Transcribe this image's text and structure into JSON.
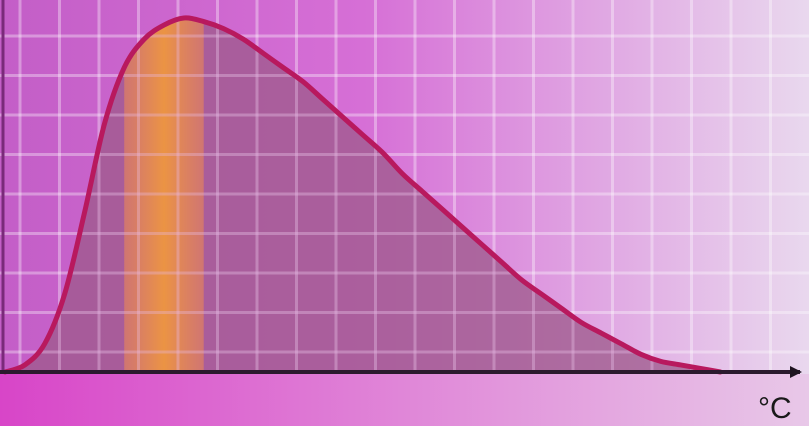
{
  "chart_data": {
    "type": "area",
    "title": "",
    "xlabel": "°C",
    "ylabel": "",
    "x": [
      0,
      10,
      20,
      30,
      40,
      50,
      60,
      70,
      80,
      90,
      100,
      110,
      120,
      130,
      140,
      150,
      160,
      170,
      180,
      190,
      200,
      210,
      220,
      230,
      240,
      250,
      260,
      270,
      280,
      290,
      300,
      310,
      320,
      330,
      340,
      350,
      360
    ],
    "values": [
      0,
      2,
      8,
      22,
      45,
      70,
      86,
      94,
      98,
      100,
      99,
      97,
      94,
      90,
      86,
      82,
      77,
      72,
      67,
      62,
      56,
      51,
      46,
      41,
      36,
      31,
      26,
      22,
      18,
      14,
      11,
      8,
      5,
      3,
      2,
      1,
      0
    ],
    "xlim": [
      0,
      390
    ],
    "ylim": [
      0,
      100
    ],
    "grid": true,
    "highlight_band": [
      60,
      100
    ],
    "colors": {
      "curve": "#b8195e",
      "fill": "#a0608f",
      "highlight": "#f09040",
      "axis": "#2b1a2e"
    }
  }
}
